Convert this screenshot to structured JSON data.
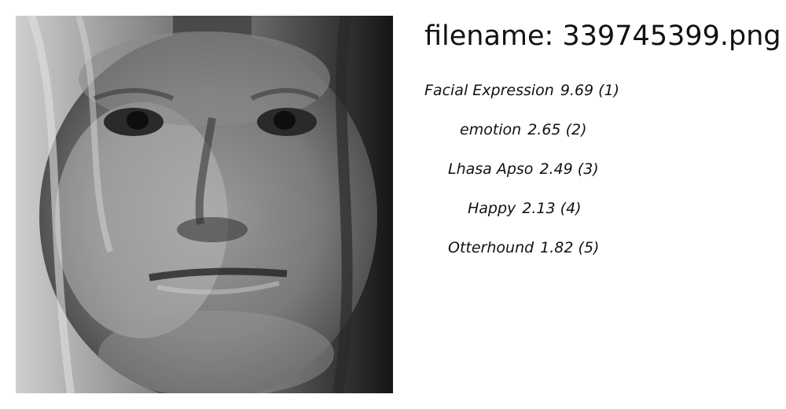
{
  "filename_text": "filename: 339745399.png",
  "image": {
    "subject": "grayscale close-up photo of a child's face"
  },
  "predictions": [
    {
      "label": "Facial Expression",
      "score": "9.69",
      "rank": "(1)"
    },
    {
      "label": "emotion",
      "score": "2.65",
      "rank": "(2)"
    },
    {
      "label": "Lhasa Apso",
      "score": "2.49",
      "rank": "(3)"
    },
    {
      "label": "Happy",
      "score": "2.13",
      "rank": "(4)"
    },
    {
      "label": "Otterhound",
      "score": "1.82",
      "rank": "(5)"
    }
  ]
}
